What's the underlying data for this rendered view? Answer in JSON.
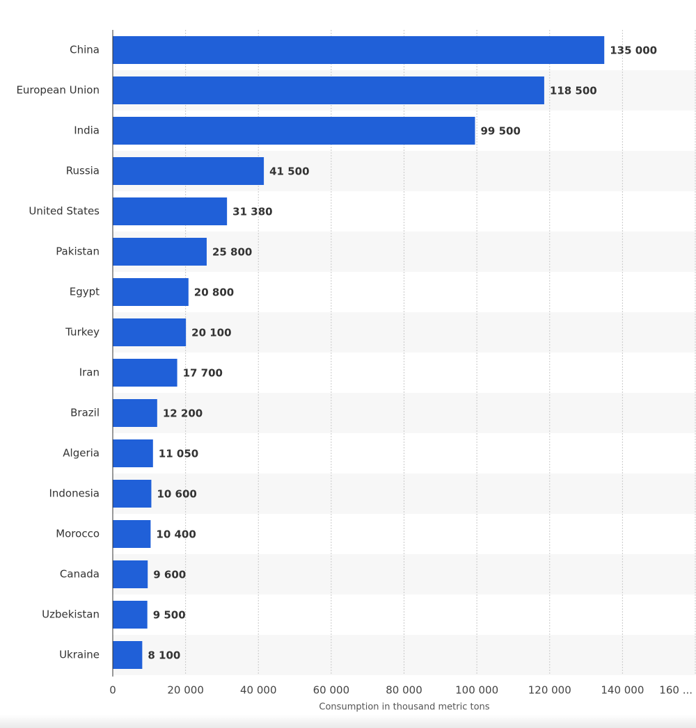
{
  "chart_data": {
    "type": "bar",
    "orientation": "horizontal",
    "x_label": "Consumption in thousand metric tons",
    "categories": [
      "China",
      "European Union",
      "India",
      "Russia",
      "United States",
      "Pakistan",
      "Egypt",
      "Turkey",
      "Iran",
      "Brazil",
      "Algeria",
      "Indonesia",
      "Morocco",
      "Canada",
      "Uzbekistan",
      "Ukraine"
    ],
    "values": [
      135000,
      118500,
      99500,
      41500,
      31380,
      25800,
      20800,
      20100,
      17700,
      12200,
      11050,
      10600,
      10400,
      9600,
      9500,
      8100
    ],
    "value_labels": [
      "135 000",
      "118 500",
      "99 500",
      "41 500",
      "31 380",
      "25 800",
      "20 800",
      "20 100",
      "17 700",
      "12 200",
      "11 050",
      "10 600",
      "10 400",
      "9 600",
      "9 500",
      "8 100"
    ],
    "color": "#2060d8",
    "xlim": [
      0,
      160000
    ],
    "xticks": [
      0,
      {
        "value": 20000,
        "label": "20 000"
      },
      {
        "value": 40000,
        "label": "40 000"
      },
      {
        "value": 60000,
        "label": "60 000"
      },
      {
        "value": 80000,
        "label": "80 000"
      },
      {
        "value": 100000,
        "label": "100 000"
      },
      {
        "value": 120000,
        "label": "120 000"
      },
      {
        "value": 140000,
        "label": "140 000"
      },
      {
        "value": 160000,
        "label": "160 ..."
      }
    ],
    "grid": true
  }
}
